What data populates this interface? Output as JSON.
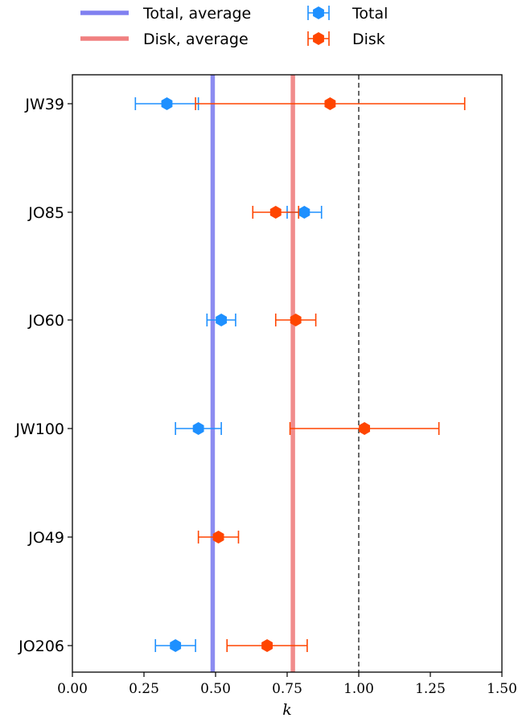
{
  "chart_data": {
    "type": "scatter",
    "title": "",
    "xlabel": "k",
    "ylabel": "",
    "xlim": [
      0.0,
      1.5
    ],
    "xticks": [
      "0.00",
      "0.25",
      "0.50",
      "0.75",
      "1.00",
      "1.25",
      "1.50"
    ],
    "xtick_values": [
      0.0,
      0.25,
      0.5,
      0.75,
      1.0,
      1.25,
      1.5
    ],
    "categories": [
      "JW39",
      "JO85",
      "JO60",
      "JW100",
      "JO49",
      "JO206"
    ],
    "grid": false,
    "legend_placement": "top (above plot)",
    "series": [
      {
        "name": "Total",
        "color": "#1e90ff",
        "values": [
          0.33,
          0.81,
          0.52,
          0.44,
          null,
          0.36
        ],
        "err_low": [
          0.22,
          0.75,
          0.47,
          0.36,
          null,
          0.29
        ],
        "err_high": [
          0.44,
          0.87,
          0.57,
          0.52,
          null,
          0.43
        ]
      },
      {
        "name": "Disk",
        "color": "#ff4500",
        "values": [
          0.9,
          0.71,
          0.78,
          1.02,
          0.51,
          0.68
        ],
        "err_low": [
          0.43,
          0.63,
          0.71,
          0.76,
          0.44,
          0.54
        ],
        "err_high": [
          1.37,
          0.79,
          0.85,
          1.28,
          0.58,
          0.82
        ]
      }
    ],
    "reference_lines": [
      {
        "name": "Total, average",
        "value": 0.49,
        "color": "#8080f0"
      },
      {
        "name": "Disk, average",
        "value": 0.77,
        "color": "#f08080"
      },
      {
        "name": "",
        "value": 1.0,
        "color": "#444444",
        "style": "dashed"
      }
    ]
  }
}
